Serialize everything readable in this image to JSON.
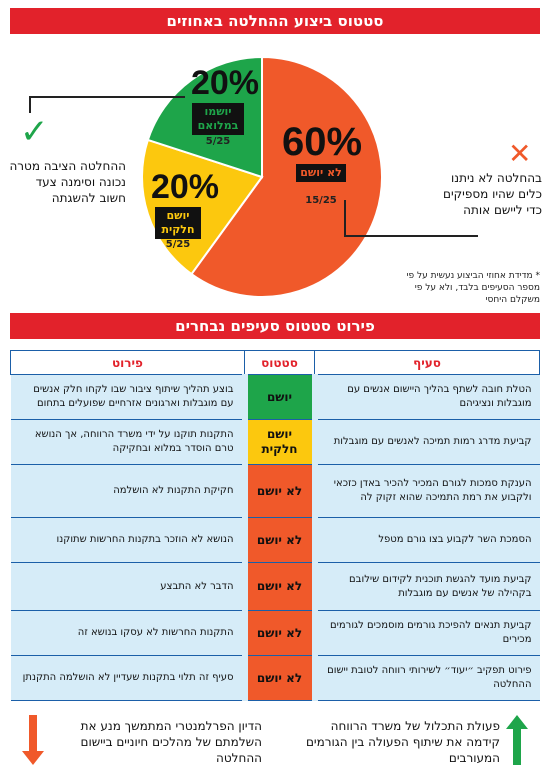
{
  "header": {
    "title": "סטטוס ביצוע ההחלטה באחוזים",
    "table_title": "פירוט סטטוס סעיפים נבחרים"
  },
  "chart_data": {
    "type": "pie",
    "title": "סטטוס ביצוע ההחלטה באחוזים",
    "slices": [
      {
        "label": "לא יושם",
        "percent": 60,
        "percent_text": "60%",
        "fraction": "15/25",
        "color": "#f0592a"
      },
      {
        "label": "יושם חלקית",
        "percent": 20,
        "percent_text": "20%",
        "fraction": "5/25",
        "color": "#fcc80e"
      },
      {
        "label": "יושמו במלואם",
        "percent": 20,
        "percent_text": "20%",
        "fraction": "5/25",
        "color": "#1ea54a"
      }
    ]
  },
  "left_note": {
    "symbol": "✓",
    "text": "ההחלטה הציבה מטרה נכונה וסימנה צעד חשוב להשגתה"
  },
  "right_note": {
    "symbol": "✕",
    "text": "בהחלטה לא ניתנו כלים שהיו מספיקים כדי ליישם אותה"
  },
  "footnote": "* מדידת אחוזי הביצוע נעשית על פי מספר הסעיפים בלבד, ולא על פי משקלם היחסי",
  "table": {
    "columns": {
      "item": "סעיף",
      "status": "סטטוס",
      "detail": "פירוט"
    },
    "rows": [
      {
        "item": "הטלת חובה לשתף בהליך היישום אנשים עם מוגבלות ונציגיהם",
        "status": "יושם",
        "status_color": "#1ea54a",
        "detail": "בוצע תהליך שיתוף ציבור שבו לקחו חלק אנשים עם מוגבלות וארגונים אזרחיים שפועלים בתחום"
      },
      {
        "item": "קביעת מדרג רמות תמיכה לאנשים עם מוגבלות",
        "status": "יושם חלקית",
        "status_color": "#fcc80e",
        "detail": "התקנות תוקנו על ידי משרד הרווחה, אך הנושא טרם הוסדר במלוא ובחקיקה"
      },
      {
        "item": "הענקת סמכות לגורם המכיר להכיר באדן כזכאי ולקבוע את רמת התמיכה שהוא זקוק לה",
        "status": "לא יושם",
        "status_color": "#f0592a",
        "detail": "חקיקת התקנות לא הושלמה"
      },
      {
        "item": "הסמכת השר לקבוע בצו גורם מטפל",
        "status": "לא יושם",
        "status_color": "#f0592a",
        "detail": "הנושא לא הוזכר בתקנות החרשות שתוקנו"
      },
      {
        "item": "קביעת מועד להגשת תוכנית לקידום שילובם בקהילה של אנשים עם מוגבלות",
        "status": "לא יושם",
        "status_color": "#f0592a",
        "detail": "הדבר לא התבצע"
      },
      {
        "item": "קביעת תנאים להפיכת גורמים מוסמכים לגורמים מכירים",
        "status": "לא יושם",
        "status_color": "#f0592a",
        "detail": "התקנות החרשות לא עסקו בנושא זה"
      },
      {
        "item": "פירוט תפקיב ״יעוד״ לשירותי רווחה לטובת יישום ההחלטה",
        "status": "לא יושם",
        "status_color": "#f0592a",
        "detail": "סעיף זה תלוי בתקנות שעדיין לא הושלמה התקנתן"
      }
    ]
  },
  "bottom": {
    "right_text": "פעולת התכלול של משרד הרווחה קידמה את שיתוף הפעולה בין הגורמים המעורבים",
    "left_text": "הדיון הפרלמנטרי המתמשך מנע את השלמתם של מהלכים חיוניים ביישום ההחלטה",
    "up_color": "#1ea54a",
    "down_color": "#f0592a"
  }
}
